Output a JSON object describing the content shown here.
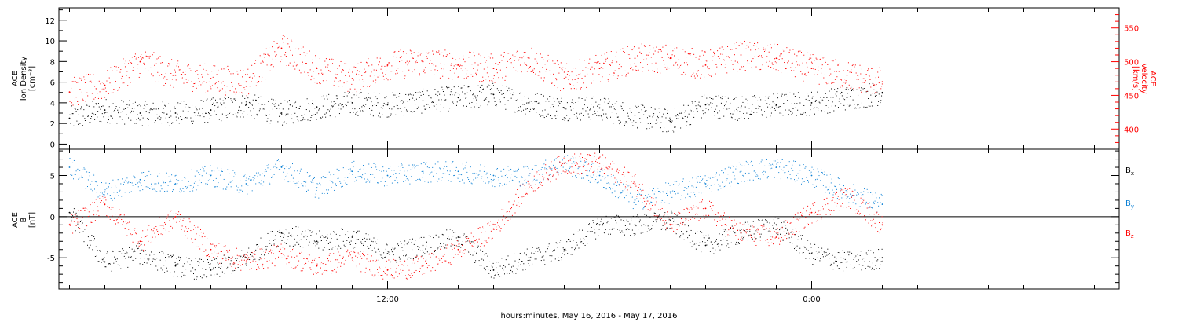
{
  "figure": {
    "xlabel": "hours:minutes, May 16, 2016 - May 17, 2016",
    "x_ticks": [
      "12:00",
      "0:00"
    ]
  },
  "colors": {
    "black": "#000000",
    "red": "#ff0000",
    "blue": "#0a7fd4"
  },
  "chart_data": [
    {
      "type": "scatter",
      "ylabel_left": [
        "ACE",
        "Ion Density",
        "[cm⁻³]"
      ],
      "ylabel_right": [
        "ACE",
        "Velocity",
        "[km/s]"
      ],
      "ylim_left": [
        -0.5,
        13.2
      ],
      "ylim_right": [
        370,
        580
      ],
      "yticks_left": [
        "0",
        "2",
        "4",
        "6",
        "8",
        "10",
        "12"
      ],
      "yticks_right": [
        "400",
        "450",
        "500",
        "550"
      ],
      "xlim_hours": [
        2.7,
        32.7
      ],
      "data_end_hours": 26.0,
      "series": [
        {
          "name": "",
          "axis": "left",
          "color": "black",
          "x": [
            3.0,
            4.0,
            5.0,
            6.0,
            7.0,
            8.0,
            9.0,
            10.0,
            11.0,
            12.0,
            13.0,
            14.0,
            15.0,
            16.0,
            17.0,
            18.0,
            19.0,
            20.0,
            21.0,
            22.0,
            23.0,
            24.0,
            25.0,
            26.0
          ],
          "y": [
            2.5,
            3.3,
            3.0,
            3.0,
            3.3,
            3.8,
            3.0,
            3.6,
            4.0,
            3.8,
            4.2,
            4.5,
            4.8,
            4.0,
            3.5,
            3.5,
            2.8,
            2.2,
            3.8,
            3.5,
            3.8,
            4.0,
            4.5,
            5.0
          ]
        },
        {
          "name": "",
          "axis": "right",
          "color": "red",
          "x": [
            3.0,
            4.0,
            5.0,
            6.0,
            7.0,
            8.0,
            9.0,
            10.0,
            11.0,
            12.0,
            13.0,
            14.0,
            15.0,
            16.0,
            17.0,
            18.0,
            19.0,
            20.0,
            21.0,
            22.0,
            23.0,
            24.0,
            25.0,
            26.0
          ],
          "y": [
            455,
            465,
            500,
            480,
            475,
            470,
            520,
            490,
            475,
            495,
            500,
            495,
            490,
            505,
            475,
            490,
            505,
            505,
            495,
            510,
            505,
            490,
            480,
            470
          ]
        }
      ]
    },
    {
      "type": "scatter",
      "ylabel_left": [
        "ACE",
        "B",
        "[nT]"
      ],
      "ylim": [
        -8.8,
        8.2
      ],
      "yticks": [
        "-5",
        "0",
        "5"
      ],
      "zero_line": true,
      "xlim_hours": [
        2.7,
        32.7
      ],
      "data_end_hours": 26.0,
      "legend_position": "right",
      "series": [
        {
          "name": "Bx",
          "label_main": "B",
          "label_sub": "x",
          "color": "black",
          "x": [
            3.0,
            4.0,
            5.0,
            6.0,
            7.0,
            8.0,
            9.0,
            10.0,
            11.0,
            12.0,
            13.0,
            14.0,
            15.0,
            16.0,
            17.0,
            18.0,
            19.0,
            20.0,
            21.0,
            22.0,
            23.0,
            24.0,
            25.0,
            26.0
          ],
          "y": [
            0.5,
            -5.5,
            -4.5,
            -6.0,
            -6.5,
            -5.0,
            -2.0,
            -3.0,
            -2.5,
            -4.5,
            -3.5,
            -2.5,
            -6.5,
            -5.0,
            -4.0,
            -1.0,
            -1.0,
            -0.5,
            -3.5,
            -2.0,
            -1.0,
            -4.5,
            -5.5,
            -5.0
          ]
        },
        {
          "name": "By",
          "label_main": "B",
          "label_sub": "y",
          "color": "blue",
          "x": [
            3.0,
            4.0,
            5.0,
            6.0,
            7.0,
            8.0,
            9.0,
            10.0,
            11.0,
            12.0,
            13.0,
            14.0,
            15.0,
            16.0,
            17.0,
            18.0,
            19.0,
            20.0,
            21.0,
            22.0,
            23.0,
            24.0,
            25.0,
            26.0
          ],
          "y": [
            6.0,
            3.0,
            4.5,
            4.0,
            5.0,
            4.0,
            6.0,
            3.5,
            5.5,
            5.0,
            5.5,
            5.5,
            5.0,
            5.0,
            6.5,
            5.0,
            2.0,
            3.0,
            4.0,
            5.5,
            6.0,
            5.0,
            3.0,
            1.5
          ]
        },
        {
          "name": "Bz",
          "label_main": "B",
          "label_sub": "z",
          "color": "red",
          "x": [
            3.0,
            4.0,
            5.0,
            6.0,
            7.0,
            8.0,
            9.0,
            10.0,
            11.0,
            12.0,
            13.0,
            14.0,
            15.0,
            16.0,
            17.0,
            18.0,
            19.0,
            20.0,
            21.0,
            22.0,
            23.0,
            24.0,
            25.0,
            26.0
          ],
          "y": [
            -1.0,
            1.5,
            -3.0,
            0.0,
            -4.0,
            -5.5,
            -4.5,
            -6.0,
            -5.0,
            -6.5,
            -6.0,
            -4.0,
            -1.5,
            4.0,
            6.5,
            6.5,
            4.0,
            -1.0,
            1.0,
            -2.0,
            -2.5,
            0.5,
            2.5,
            -1.0
          ]
        }
      ]
    }
  ]
}
